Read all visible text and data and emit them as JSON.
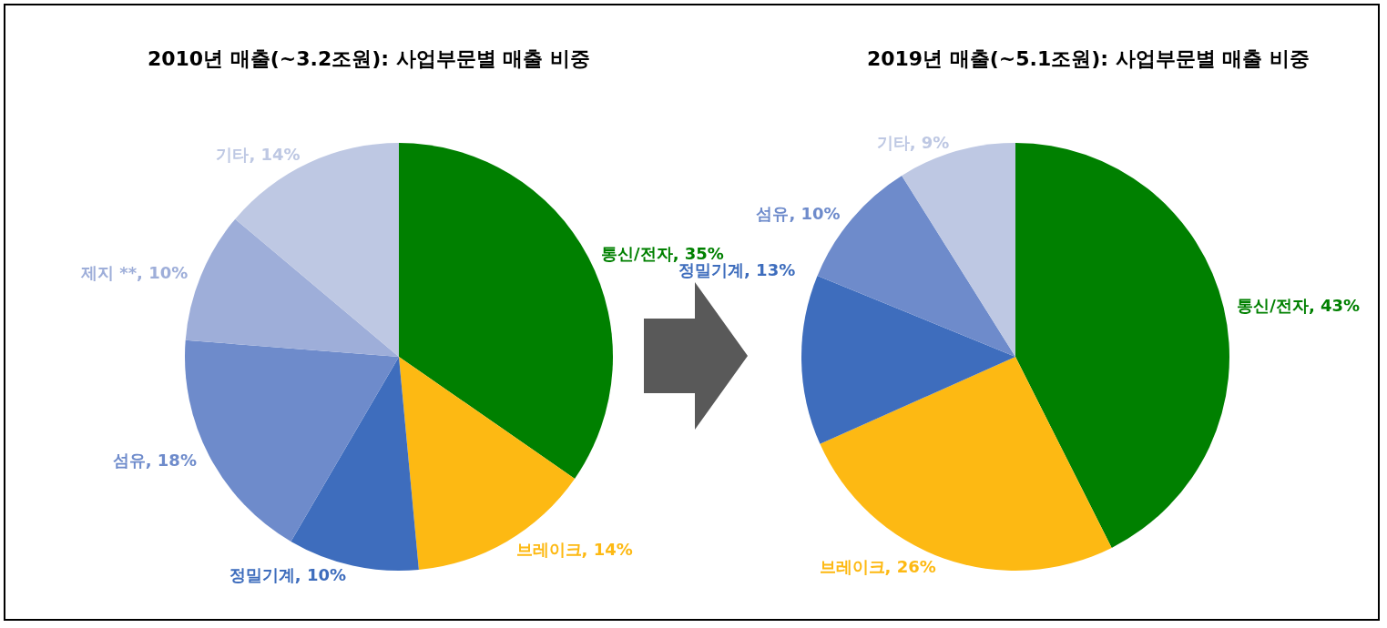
{
  "chart_data": [
    {
      "type": "pie",
      "title": "2010년 매출(~3.2조원): 사업부문별 매출 비중",
      "categories": [
        "통신/전자",
        "브레이크",
        "정밀기계",
        "섬유",
        "제지 **",
        "기타"
      ],
      "values": [
        35,
        14,
        10,
        18,
        10,
        14
      ],
      "colors": [
        "#008000",
        "#fdb913",
        "#3e6dbd",
        "#6e8bcb",
        "#9eaed9",
        "#bec8e3"
      ],
      "value_labels": [
        "35%",
        "14%",
        "10%",
        "18%",
        "10%",
        "14%"
      ],
      "legend": false
    },
    {
      "type": "pie",
      "title": "2019년 매출(~5.1조원): 사업부문별 매출 비중",
      "categories": [
        "통신/전자",
        "브레이크",
        "정밀기계",
        "섬유",
        "기타"
      ],
      "values": [
        43,
        26,
        13,
        10,
        9
      ],
      "colors": [
        "#008000",
        "#fdb913",
        "#3e6dbd",
        "#6e8bcb",
        "#bec8e3"
      ],
      "value_labels": [
        "43%",
        "26%",
        "13%",
        "10%",
        "9%"
      ],
      "legend": false
    }
  ]
}
